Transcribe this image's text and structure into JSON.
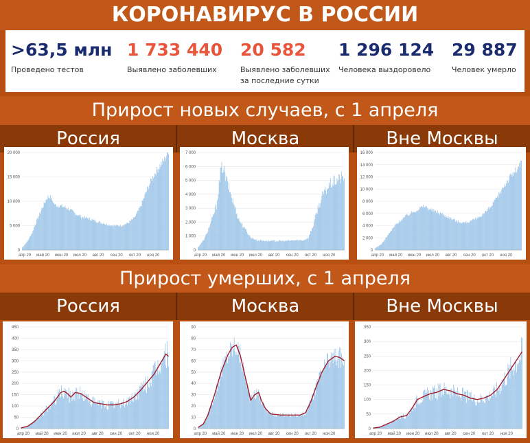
{
  "header": {
    "title": "КОРОНАВИРУС В РОССИИ"
  },
  "stats": [
    {
      "value": ">63,5 млн",
      "label": "Проведено тестов",
      "color": "#1a2b6e"
    },
    {
      "value": "1 733 440",
      "label": "Выявлено заболевших",
      "color": "#e8553a"
    },
    {
      "value": "20 582",
      "label": "Выявлено заболевших\nза последние сутки",
      "color": "#e8553a"
    },
    {
      "value": "1 296 124",
      "label": "Человека выздоровело",
      "color": "#1a2b6e"
    },
    {
      "value": "29 887",
      "label": "Человек умерло",
      "color": "#1a2b6e"
    }
  ],
  "sections": {
    "cases_title": "Прирост новых случаев, с 1 апреля",
    "deaths_title": "Прирост умерших, с 1 апреля"
  },
  "tabs": [
    "Россия",
    "Москва",
    "Вне Москвы"
  ],
  "colors": {
    "bars": "#9bc4e8",
    "avg_line": "#a01c2a",
    "panel_bg": "#ffffff",
    "grid": "#e6e6e6"
  },
  "chart_data": [
    {
      "id": "cases-russia",
      "type": "bar",
      "region": "Россия",
      "metric": "cases",
      "ylim": [
        0,
        20000
      ],
      "yticks": [
        "0",
        "5 000",
        "10 000",
        "15 000",
        "20 000"
      ],
      "xticks": [
        "апр 20",
        "май 20",
        "июн 20",
        "июл 20",
        "авг 20",
        "сен 20",
        "окт 20",
        "ноя 20"
      ],
      "anchors": [
        [
          0,
          500
        ],
        [
          8,
          1800
        ],
        [
          15,
          3500
        ],
        [
          22,
          6000
        ],
        [
          30,
          8500
        ],
        [
          38,
          10800
        ],
        [
          42,
          11000
        ],
        [
          50,
          9200
        ],
        [
          60,
          9000
        ],
        [
          70,
          8500
        ],
        [
          80,
          7500
        ],
        [
          90,
          6800
        ],
        [
          100,
          6500
        ],
        [
          110,
          6000
        ],
        [
          120,
          5600
        ],
        [
          130,
          5200
        ],
        [
          140,
          5000
        ],
        [
          150,
          5000
        ],
        [
          160,
          5500
        ],
        [
          170,
          6500
        ],
        [
          180,
          9000
        ],
        [
          190,
          12500
        ],
        [
          200,
          15500
        ],
        [
          210,
          17500
        ],
        [
          216,
          18500
        ],
        [
          222,
          20500
        ]
      ],
      "noise": 0.05,
      "days": 223
    },
    {
      "id": "cases-moscow",
      "type": "bar",
      "region": "Москва",
      "metric": "cases",
      "ylim": [
        0,
        7000
      ],
      "yticks": [
        "0",
        "1 000",
        "2 000",
        "3 000",
        "4 000",
        "5 000",
        "6 000",
        "7 000"
      ],
      "xticks": [
        "апр 20",
        "май 20",
        "июн 20",
        "июл 20",
        "авг 20",
        "сен 20",
        "окт 20",
        "ноя 20"
      ],
      "anchors": [
        [
          0,
          200
        ],
        [
          10,
          800
        ],
        [
          20,
          2000
        ],
        [
          28,
          3200
        ],
        [
          35,
          5800
        ],
        [
          38,
          6000
        ],
        [
          42,
          5200
        ],
        [
          48,
          4300
        ],
        [
          55,
          3200
        ],
        [
          62,
          2200
        ],
        [
          70,
          1600
        ],
        [
          80,
          900
        ],
        [
          90,
          700
        ],
        [
          110,
          650
        ],
        [
          130,
          650
        ],
        [
          150,
          700
        ],
        [
          160,
          700
        ],
        [
          168,
          900
        ],
        [
          175,
          1800
        ],
        [
          182,
          3000
        ],
        [
          190,
          4000
        ],
        [
          200,
          4700
        ],
        [
          210,
          5000
        ],
        [
          218,
          5200
        ],
        [
          222,
          5200
        ]
      ],
      "noise": 0.09,
      "days": 223
    },
    {
      "id": "cases-outside",
      "type": "bar",
      "region": "Вне Москвы",
      "metric": "cases",
      "ylim": [
        0,
        16000
      ],
      "yticks": [
        "0",
        "2 000",
        "4 000",
        "6 000",
        "8 000",
        "10 000",
        "12 000",
        "14 000",
        "16 000"
      ],
      "xticks": [
        "апр 20",
        "май 20",
        "июн 20",
        "июл 20",
        "авг 20",
        "сен 20",
        "окт 20",
        "ноя 20"
      ],
      "anchors": [
        [
          0,
          300
        ],
        [
          10,
          1000
        ],
        [
          20,
          2500
        ],
        [
          30,
          4000
        ],
        [
          40,
          5000
        ],
        [
          50,
          5800
        ],
        [
          60,
          6400
        ],
        [
          70,
          7000
        ],
        [
          75,
          7200
        ],
        [
          85,
          6600
        ],
        [
          100,
          6000
        ],
        [
          115,
          5200
        ],
        [
          125,
          4700
        ],
        [
          135,
          4500
        ],
        [
          145,
          4700
        ],
        [
          155,
          5200
        ],
        [
          165,
          6000
        ],
        [
          175,
          7000
        ],
        [
          185,
          8500
        ],
        [
          195,
          10500
        ],
        [
          205,
          12000
        ],
        [
          215,
          13200
        ],
        [
          222,
          14200
        ]
      ],
      "noise": 0.05,
      "days": 223
    },
    {
      "id": "deaths-russia",
      "type": "bar",
      "region": "Россия",
      "metric": "deaths",
      "ylim": [
        0,
        450
      ],
      "yticks": [
        "0",
        "50",
        "100",
        "150",
        "200",
        "250",
        "300",
        "350",
        "400",
        "450"
      ],
      "xticks": [
        "апр 20",
        "май 20",
        "июн 20",
        "июл 20",
        "авг 20",
        "сен 20",
        "окт 20",
        "ноя 20"
      ],
      "anchors": [
        [
          0,
          3
        ],
        [
          10,
          10
        ],
        [
          20,
          30
        ],
        [
          30,
          60
        ],
        [
          40,
          90
        ],
        [
          50,
          120
        ],
        [
          60,
          160
        ],
        [
          65,
          165
        ],
        [
          70,
          155
        ],
        [
          75,
          140
        ],
        [
          82,
          160
        ],
        [
          90,
          155
        ],
        [
          100,
          135
        ],
        [
          110,
          115
        ],
        [
          120,
          110
        ],
        [
          130,
          105
        ],
        [
          140,
          105
        ],
        [
          150,
          110
        ],
        [
          160,
          120
        ],
        [
          170,
          140
        ],
        [
          180,
          170
        ],
        [
          190,
          205
        ],
        [
          200,
          240
        ],
        [
          210,
          290
        ],
        [
          218,
          330
        ],
        [
          222,
          320
        ]
      ],
      "noise": 0.22,
      "days": 223
    },
    {
      "id": "deaths-moscow",
      "type": "bar",
      "region": "Москва",
      "metric": "deaths",
      "ylim": [
        0,
        90
      ],
      "yticks": [
        "0",
        "10",
        "20",
        "30",
        "40",
        "50",
        "60",
        "70",
        "80",
        "90"
      ],
      "xticks": [
        "апр 20",
        "май 20",
        "июн 20",
        "июл 20",
        "авг 20",
        "сен 20",
        "окт 20",
        "ноя 20"
      ],
      "anchors": [
        [
          0,
          1
        ],
        [
          8,
          4
        ],
        [
          15,
          12
        ],
        [
          25,
          30
        ],
        [
          35,
          50
        ],
        [
          45,
          65
        ],
        [
          52,
          72
        ],
        [
          58,
          74
        ],
        [
          64,
          65
        ],
        [
          70,
          50
        ],
        [
          76,
          35
        ],
        [
          80,
          25
        ],
        [
          86,
          30
        ],
        [
          92,
          32
        ],
        [
          96,
          25
        ],
        [
          102,
          18
        ],
        [
          110,
          13
        ],
        [
          125,
          12
        ],
        [
          140,
          12
        ],
        [
          155,
          12
        ],
        [
          163,
          14
        ],
        [
          170,
          22
        ],
        [
          178,
          35
        ],
        [
          188,
          50
        ],
        [
          198,
          60
        ],
        [
          208,
          64
        ],
        [
          215,
          63
        ],
        [
          222,
          60
        ]
      ],
      "noise": 0.16,
      "days": 223
    },
    {
      "id": "deaths-outside",
      "type": "bar",
      "region": "Вне Москвы",
      "metric": "deaths",
      "ylim": [
        0,
        350
      ],
      "yticks": [
        "0",
        "50",
        "100",
        "150",
        "200",
        "250",
        "300",
        "350"
      ],
      "xticks": [
        "апр 20",
        "май 20",
        "июн 20",
        "июл 20",
        "авг 20",
        "сен 20",
        "окт 20",
        "ноя 20"
      ],
      "anchors": [
        [
          0,
          2
        ],
        [
          10,
          5
        ],
        [
          20,
          15
        ],
        [
          30,
          25
        ],
        [
          40,
          40
        ],
        [
          50,
          45
        ],
        [
          58,
          70
        ],
        [
          66,
          100
        ],
        [
          75,
          110
        ],
        [
          85,
          120
        ],
        [
          95,
          125
        ],
        [
          105,
          135
        ],
        [
          115,
          130
        ],
        [
          125,
          120
        ],
        [
          135,
          115
        ],
        [
          145,
          105
        ],
        [
          155,
          100
        ],
        [
          165,
          105
        ],
        [
          175,
          115
        ],
        [
          185,
          135
        ],
        [
          195,
          170
        ],
        [
          205,
          205
        ],
        [
          215,
          240
        ],
        [
          222,
          265
        ]
      ],
      "noise": 0.22,
      "days": 223
    }
  ]
}
